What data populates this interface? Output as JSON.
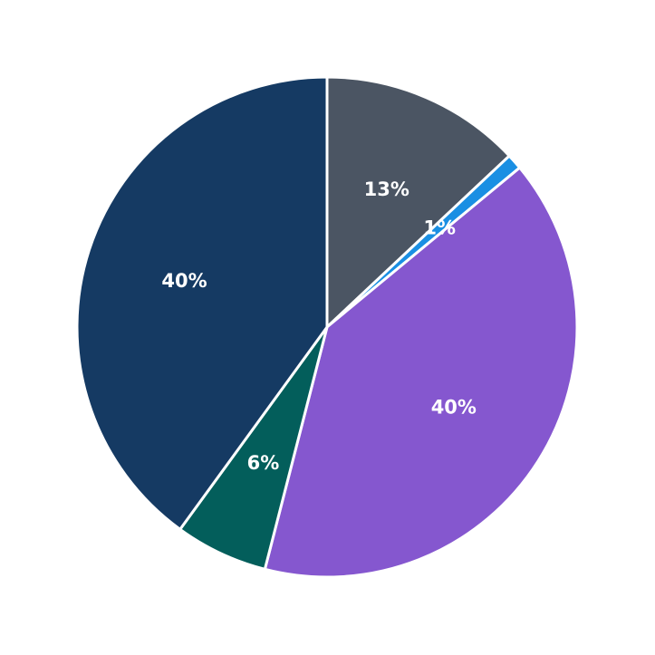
{
  "chart_data": {
    "type": "pie",
    "title": "",
    "start_angle": 90,
    "direction": "clockwise",
    "slices": [
      {
        "label": "13%",
        "value": 13,
        "color": "#4b5563"
      },
      {
        "label": "1%",
        "value": 1,
        "color": "#1a8fe3"
      },
      {
        "label": "40%",
        "value": 40,
        "color": "#8557cf"
      },
      {
        "label": "6%",
        "value": 6,
        "color": "#035e5b"
      },
      {
        "label": "40%",
        "value": 40,
        "color": "#153a63"
      }
    ],
    "legend": null
  }
}
